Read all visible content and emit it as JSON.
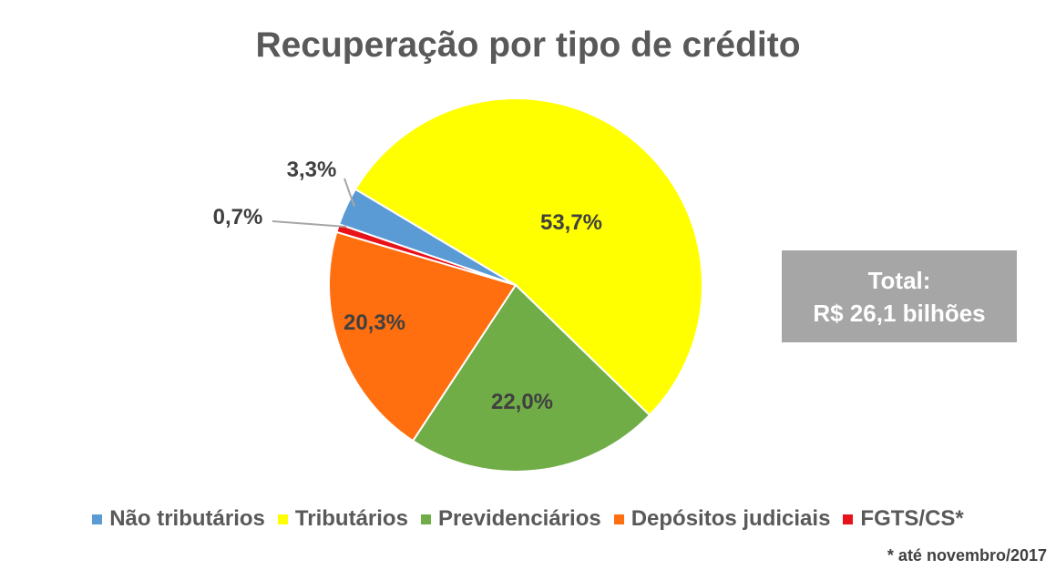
{
  "chart_data": {
    "type": "pie",
    "title": "Recuperação por tipo de crédito",
    "categories": [
      "Não tributários",
      "Tributários",
      "Previdenciários",
      "Depósitos judiciais",
      "FGTS/CS*"
    ],
    "values": [
      3.3,
      53.7,
      22.0,
      20.3,
      0.7
    ],
    "data_labels": [
      "3,3%",
      "53,7%",
      "22,0%",
      "20,3%",
      "0,7%"
    ],
    "colors": [
      "#5b9bd5",
      "#ffff00",
      "#70ad47",
      "#ff6f0f",
      "#e8121b"
    ],
    "legend_position": "bottom"
  },
  "annotation": {
    "line1": "Total:",
    "line2": "R$ 26,1 bilhões"
  },
  "footnote": "* até novembro/2017"
}
